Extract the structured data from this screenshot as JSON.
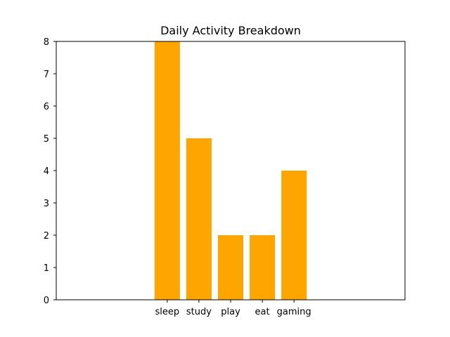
{
  "chart_data": {
    "type": "bar",
    "title": "Daily Activity Breakdown",
    "xlabel": "",
    "ylabel": "",
    "categories": [
      "sleep",
      "study",
      "play",
      "eat",
      "gaming"
    ],
    "values": [
      8,
      5,
      2,
      2,
      4
    ],
    "bar_color": "#ffa500",
    "ylim": [
      0,
      8
    ],
    "yticks": [
      "0",
      "1",
      "2",
      "3",
      "4",
      "5",
      "6",
      "7",
      "8"
    ],
    "xlim": [
      -3.5,
      7.5
    ],
    "grid": false,
    "legend": "none"
  }
}
